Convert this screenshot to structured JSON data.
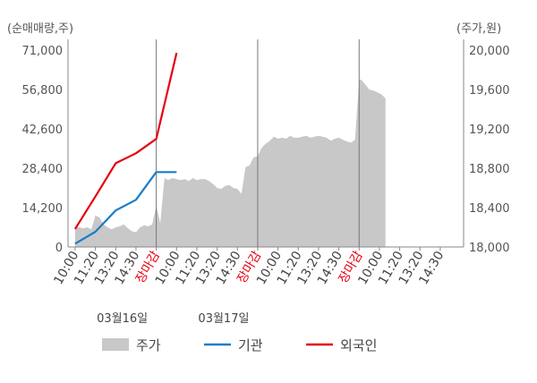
{
  "chart_data": {
    "type": "area",
    "left_axis": {
      "unit_label": "(순매매량,주)",
      "ticks": [
        "0",
        "14,200",
        "28,400",
        "42,600",
        "56,800",
        "71,000"
      ],
      "range": [
        0,
        71000
      ]
    },
    "right_axis": {
      "unit_label": "(주가,원)",
      "ticks": [
        "18,000",
        "18,400",
        "18,800",
        "19,200",
        "19,600",
        "20,000"
      ],
      "range": [
        18000,
        20000
      ]
    },
    "x_ticks": [
      {
        "label": "10:00",
        "red": false
      },
      {
        "label": "11:20",
        "red": false
      },
      {
        "label": "13:20",
        "red": false
      },
      {
        "label": "14:30",
        "red": false
      },
      {
        "label": "장마감",
        "red": true
      },
      {
        "label": "10:00",
        "red": false
      },
      {
        "label": "11:20",
        "red": false
      },
      {
        "label": "13:20",
        "red": false
      },
      {
        "label": "14:30",
        "red": false
      },
      {
        "label": "장마감",
        "red": true
      },
      {
        "label": "10:00",
        "red": false
      },
      {
        "label": "11:20",
        "red": false
      },
      {
        "label": "13:20",
        "red": false
      },
      {
        "label": "14:30",
        "red": false
      },
      {
        "label": "장마감",
        "red": true
      },
      {
        "label": "10:00",
        "red": false
      },
      {
        "label": "11:20",
        "red": false
      },
      {
        "label": "13:20",
        "red": false
      },
      {
        "label": "14:30",
        "red": false
      }
    ],
    "dates": [
      {
        "label": "03월16일",
        "tick_index": 1
      },
      {
        "label": "03월17일",
        "tick_index": 6
      }
    ],
    "legend": [
      {
        "name": "주가",
        "type": "area",
        "color": "#c8c8c8"
      },
      {
        "name": "기관",
        "type": "line",
        "color": "#1a7dc8"
      },
      {
        "name": "외국인",
        "type": "line",
        "color": "#e60012"
      }
    ],
    "price_series": {
      "name": "주가",
      "x": [
        0,
        0.2,
        0.4,
        0.6,
        0.8,
        1,
        1.2,
        1.4,
        1.6,
        1.8,
        2,
        2.2,
        2.4,
        2.6,
        2.8,
        3,
        3.2,
        3.4,
        3.6,
        3.8,
        4,
        4.2,
        4.4,
        4.6,
        4.8,
        5,
        5.2,
        5.4,
        5.6,
        5.8,
        6,
        6.2,
        6.4,
        6.6,
        6.8,
        7,
        7.2,
        7.4,
        7.6,
        7.8,
        8,
        8.2,
        8.4,
        8.6,
        8.8,
        9,
        9.2,
        9.4,
        9.6,
        9.8,
        10,
        10.2,
        10.4,
        10.6,
        10.8,
        11,
        11.2,
        11.4,
        11.6,
        11.8,
        12,
        12.2,
        12.4,
        12.6,
        12.8,
        13,
        13.2,
        13.4,
        13.6,
        13.8,
        14,
        14.1,
        14.3,
        14.5,
        14.7,
        14.9,
        15.1,
        15.3
      ],
      "values": [
        18210,
        18200,
        18190,
        18200,
        18180,
        18320,
        18300,
        18230,
        18200,
        18180,
        18200,
        18210,
        18230,
        18190,
        18160,
        18150,
        18200,
        18220,
        18210,
        18230,
        18420,
        18240,
        18700,
        18680,
        18700,
        18690,
        18680,
        18690,
        18670,
        18700,
        18680,
        18690,
        18690,
        18670,
        18640,
        18600,
        18590,
        18620,
        18630,
        18600,
        18590,
        18540,
        18810,
        18830,
        18910,
        18920,
        19010,
        19050,
        19080,
        19120,
        19100,
        19110,
        19100,
        19130,
        19110,
        19110,
        19120,
        19130,
        19110,
        19120,
        19130,
        19120,
        19110,
        19080,
        19100,
        19110,
        19090,
        19070,
        19060,
        19090,
        19700,
        19700,
        19650,
        19600,
        19590,
        19570,
        19550,
        19510
      ],
      "note_values_unit": "원"
    },
    "series": [
      {
        "name": "기관",
        "x": [
          0,
          1,
          2,
          3,
          4,
          4.5,
          5
        ],
        "values": [
          1200,
          5500,
          13200,
          17000,
          27000,
          27000,
          27000
        ]
      },
      {
        "name": "외국인",
        "x": [
          0,
          1,
          2,
          3,
          4,
          5
        ],
        "values": [
          6500,
          18200,
          30200,
          33800,
          39000,
          70000
        ]
      }
    ],
    "xlim": [
      0,
      18
    ],
    "grid": false
  }
}
